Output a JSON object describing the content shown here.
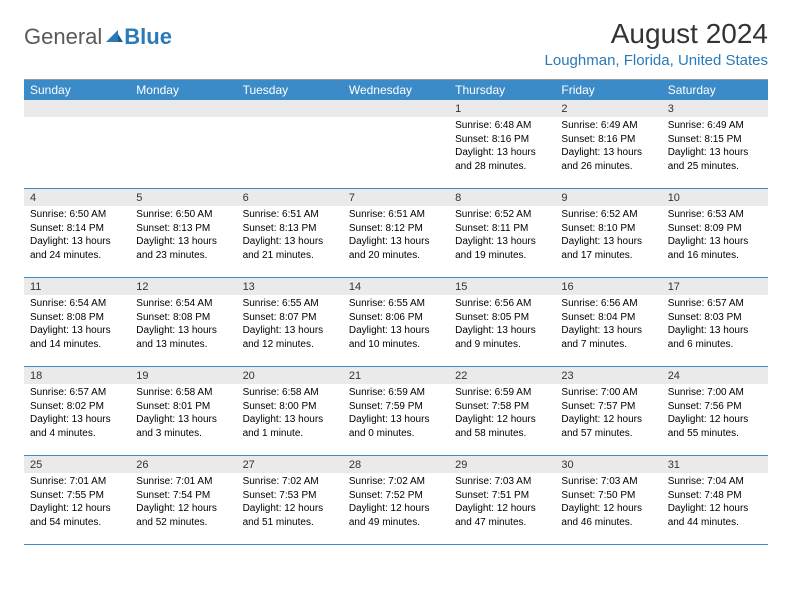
{
  "logo": {
    "general": "General",
    "blue": "Blue"
  },
  "title": "August 2024",
  "location": "Loughman, Florida, United States",
  "dayHeaders": [
    "Sunday",
    "Monday",
    "Tuesday",
    "Wednesday",
    "Thursday",
    "Friday",
    "Saturday"
  ],
  "colors": {
    "headerBg": "#3b8bc9",
    "headerText": "#ffffff",
    "dayNumBg": "#eaeaea",
    "accent": "#2a7ab8",
    "borderBottom": "#3b8bc9"
  },
  "weeks": [
    [
      {
        "empty": true
      },
      {
        "empty": true
      },
      {
        "empty": true
      },
      {
        "empty": true
      },
      {
        "num": "1",
        "sunrise": "Sunrise: 6:48 AM",
        "sunset": "Sunset: 8:16 PM",
        "daylight": "Daylight: 13 hours and 28 minutes."
      },
      {
        "num": "2",
        "sunrise": "Sunrise: 6:49 AM",
        "sunset": "Sunset: 8:16 PM",
        "daylight": "Daylight: 13 hours and 26 minutes."
      },
      {
        "num": "3",
        "sunrise": "Sunrise: 6:49 AM",
        "sunset": "Sunset: 8:15 PM",
        "daylight": "Daylight: 13 hours and 25 minutes."
      }
    ],
    [
      {
        "num": "4",
        "sunrise": "Sunrise: 6:50 AM",
        "sunset": "Sunset: 8:14 PM",
        "daylight": "Daylight: 13 hours and 24 minutes."
      },
      {
        "num": "5",
        "sunrise": "Sunrise: 6:50 AM",
        "sunset": "Sunset: 8:13 PM",
        "daylight": "Daylight: 13 hours and 23 minutes."
      },
      {
        "num": "6",
        "sunrise": "Sunrise: 6:51 AM",
        "sunset": "Sunset: 8:13 PM",
        "daylight": "Daylight: 13 hours and 21 minutes."
      },
      {
        "num": "7",
        "sunrise": "Sunrise: 6:51 AM",
        "sunset": "Sunset: 8:12 PM",
        "daylight": "Daylight: 13 hours and 20 minutes."
      },
      {
        "num": "8",
        "sunrise": "Sunrise: 6:52 AM",
        "sunset": "Sunset: 8:11 PM",
        "daylight": "Daylight: 13 hours and 19 minutes."
      },
      {
        "num": "9",
        "sunrise": "Sunrise: 6:52 AM",
        "sunset": "Sunset: 8:10 PM",
        "daylight": "Daylight: 13 hours and 17 minutes."
      },
      {
        "num": "10",
        "sunrise": "Sunrise: 6:53 AM",
        "sunset": "Sunset: 8:09 PM",
        "daylight": "Daylight: 13 hours and 16 minutes."
      }
    ],
    [
      {
        "num": "11",
        "sunrise": "Sunrise: 6:54 AM",
        "sunset": "Sunset: 8:08 PM",
        "daylight": "Daylight: 13 hours and 14 minutes."
      },
      {
        "num": "12",
        "sunrise": "Sunrise: 6:54 AM",
        "sunset": "Sunset: 8:08 PM",
        "daylight": "Daylight: 13 hours and 13 minutes."
      },
      {
        "num": "13",
        "sunrise": "Sunrise: 6:55 AM",
        "sunset": "Sunset: 8:07 PM",
        "daylight": "Daylight: 13 hours and 12 minutes."
      },
      {
        "num": "14",
        "sunrise": "Sunrise: 6:55 AM",
        "sunset": "Sunset: 8:06 PM",
        "daylight": "Daylight: 13 hours and 10 minutes."
      },
      {
        "num": "15",
        "sunrise": "Sunrise: 6:56 AM",
        "sunset": "Sunset: 8:05 PM",
        "daylight": "Daylight: 13 hours and 9 minutes."
      },
      {
        "num": "16",
        "sunrise": "Sunrise: 6:56 AM",
        "sunset": "Sunset: 8:04 PM",
        "daylight": "Daylight: 13 hours and 7 minutes."
      },
      {
        "num": "17",
        "sunrise": "Sunrise: 6:57 AM",
        "sunset": "Sunset: 8:03 PM",
        "daylight": "Daylight: 13 hours and 6 minutes."
      }
    ],
    [
      {
        "num": "18",
        "sunrise": "Sunrise: 6:57 AM",
        "sunset": "Sunset: 8:02 PM",
        "daylight": "Daylight: 13 hours and 4 minutes."
      },
      {
        "num": "19",
        "sunrise": "Sunrise: 6:58 AM",
        "sunset": "Sunset: 8:01 PM",
        "daylight": "Daylight: 13 hours and 3 minutes."
      },
      {
        "num": "20",
        "sunrise": "Sunrise: 6:58 AM",
        "sunset": "Sunset: 8:00 PM",
        "daylight": "Daylight: 13 hours and 1 minute."
      },
      {
        "num": "21",
        "sunrise": "Sunrise: 6:59 AM",
        "sunset": "Sunset: 7:59 PM",
        "daylight": "Daylight: 13 hours and 0 minutes."
      },
      {
        "num": "22",
        "sunrise": "Sunrise: 6:59 AM",
        "sunset": "Sunset: 7:58 PM",
        "daylight": "Daylight: 12 hours and 58 minutes."
      },
      {
        "num": "23",
        "sunrise": "Sunrise: 7:00 AM",
        "sunset": "Sunset: 7:57 PM",
        "daylight": "Daylight: 12 hours and 57 minutes."
      },
      {
        "num": "24",
        "sunrise": "Sunrise: 7:00 AM",
        "sunset": "Sunset: 7:56 PM",
        "daylight": "Daylight: 12 hours and 55 minutes."
      }
    ],
    [
      {
        "num": "25",
        "sunrise": "Sunrise: 7:01 AM",
        "sunset": "Sunset: 7:55 PM",
        "daylight": "Daylight: 12 hours and 54 minutes."
      },
      {
        "num": "26",
        "sunrise": "Sunrise: 7:01 AM",
        "sunset": "Sunset: 7:54 PM",
        "daylight": "Daylight: 12 hours and 52 minutes."
      },
      {
        "num": "27",
        "sunrise": "Sunrise: 7:02 AM",
        "sunset": "Sunset: 7:53 PM",
        "daylight": "Daylight: 12 hours and 51 minutes."
      },
      {
        "num": "28",
        "sunrise": "Sunrise: 7:02 AM",
        "sunset": "Sunset: 7:52 PM",
        "daylight": "Daylight: 12 hours and 49 minutes."
      },
      {
        "num": "29",
        "sunrise": "Sunrise: 7:03 AM",
        "sunset": "Sunset: 7:51 PM",
        "daylight": "Daylight: 12 hours and 47 minutes."
      },
      {
        "num": "30",
        "sunrise": "Sunrise: 7:03 AM",
        "sunset": "Sunset: 7:50 PM",
        "daylight": "Daylight: 12 hours and 46 minutes."
      },
      {
        "num": "31",
        "sunrise": "Sunrise: 7:04 AM",
        "sunset": "Sunset: 7:48 PM",
        "daylight": "Daylight: 12 hours and 44 minutes."
      }
    ]
  ]
}
